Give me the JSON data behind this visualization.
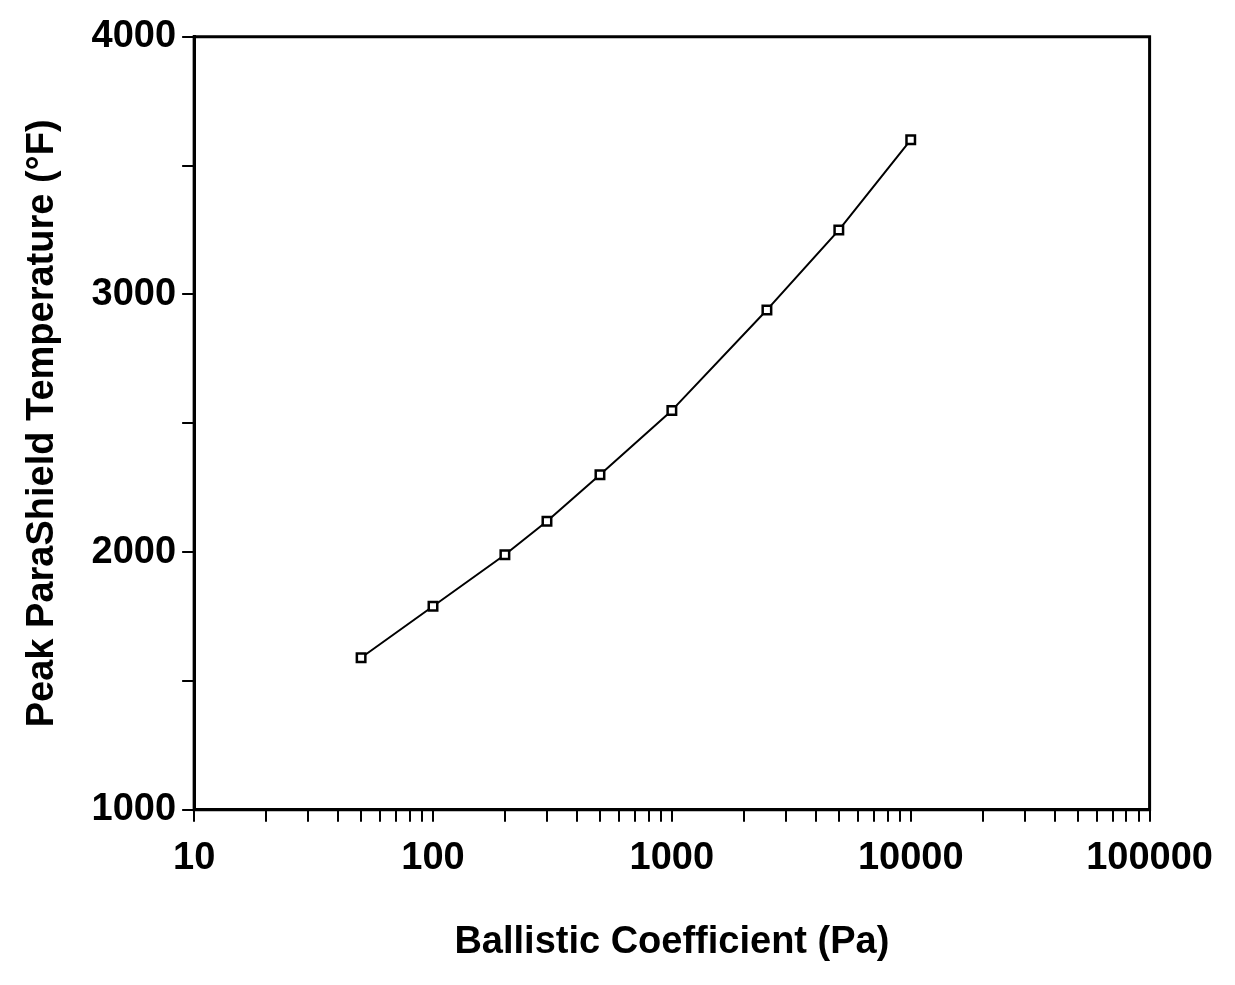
{
  "chart_data": {
    "type": "line",
    "xlabel": "Ballistic Coefficient (Pa)",
    "ylabel": "Peak ParaShield Temperature (°F)",
    "x": [
      50,
      100,
      200,
      300,
      500,
      1000,
      2500,
      5000,
      10000
    ],
    "series": [
      {
        "color": "#000000",
        "values": [
          1590,
          1790,
          1990,
          2120,
          2300,
          2550,
          2940,
          3250,
          3600
        ]
      }
    ],
    "log": "x",
    "xlim": [
      10,
      100000
    ],
    "xticks": [
      10,
      {
        "value": 20,
        "label": null
      },
      {
        "value": 30,
        "label": null
      },
      {
        "value": 40,
        "label": null
      },
      {
        "value": 50,
        "label": null
      },
      {
        "value": 60,
        "label": null
      },
      {
        "value": 70,
        "label": null
      },
      {
        "value": 80,
        "label": null
      },
      {
        "value": 90,
        "label": null
      },
      100,
      {
        "value": 200,
        "label": null
      },
      {
        "value": 300,
        "label": null
      },
      {
        "value": 400,
        "label": null
      },
      {
        "value": 500,
        "label": null
      },
      {
        "value": 600,
        "label": null
      },
      {
        "value": 700,
        "label": null
      },
      {
        "value": 800,
        "label": null
      },
      {
        "value": 900,
        "label": null
      },
      1000,
      {
        "value": 2000,
        "label": null
      },
      {
        "value": 3000,
        "label": null
      },
      {
        "value": 4000,
        "label": null
      },
      {
        "value": 5000,
        "label": null
      },
      {
        "value": 6000,
        "label": null
      },
      {
        "value": 7000,
        "label": null
      },
      {
        "value": 8000,
        "label": null
      },
      {
        "value": 9000,
        "label": null
      },
      10000,
      {
        "value": 20000,
        "label": null
      },
      {
        "value": 30000,
        "label": null
      },
      {
        "value": 40000,
        "label": null
      },
      {
        "value": 50000,
        "label": null
      },
      {
        "value": 60000,
        "label": null
      },
      {
        "value": 70000,
        "label": null
      },
      {
        "value": 80000,
        "label": null
      },
      {
        "value": 90000,
        "label": null
      },
      100000
    ],
    "ylim": [
      1000,
      4000
    ],
    "yticks": [
      1000,
      {
        "value": 1500,
        "label": null
      },
      2000,
      {
        "value": 2500,
        "label": null
      },
      3000,
      {
        "value": 3500,
        "label": null
      },
      4000
    ],
    "grid": false,
    "legend": false,
    "marker": "square",
    "line_style": "solid"
  }
}
